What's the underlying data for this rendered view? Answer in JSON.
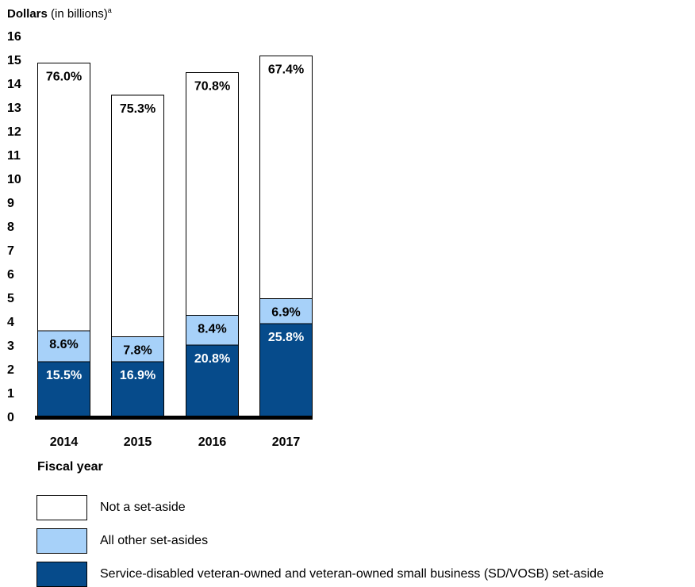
{
  "y_axis_label": {
    "bold": "Dollars",
    "rest": " (in billions)",
    "note": "a"
  },
  "x_axis_label": "Fiscal year",
  "colors": {
    "not_set_aside": "#ffffff",
    "other_set_asides": "#a7d1f9",
    "sdvosb_set_aside": "#064b8b",
    "axis": "#000000"
  },
  "chart_data": {
    "type": "bar",
    "stacked": true,
    "categories": [
      "2014",
      "2015",
      "2016",
      "2017"
    ],
    "ylim": [
      0,
      16
    ],
    "yticks": [
      0,
      1,
      2,
      3,
      4,
      5,
      6,
      7,
      8,
      9,
      10,
      11,
      12,
      13,
      14,
      15,
      16
    ],
    "xlabel": "Fiscal year",
    "ylabel": "Dollars (in billions)",
    "grid": false,
    "legend_position": "bottom",
    "series": [
      {
        "name": "Service-disabled veteran-owned and veteran-owned small business (SD/VOSB) set-aside",
        "values": [
          2.3,
          2.3,
          3.0,
          3.9
        ],
        "labels": [
          "15.5%",
          "16.9%",
          "20.8%",
          "25.8%"
        ],
        "color": "#064b8b"
      },
      {
        "name": "All other set-asides",
        "values": [
          1.3,
          1.05,
          1.25,
          1.05
        ],
        "labels": [
          "8.6%",
          "7.8%",
          "8.4%",
          "6.9%"
        ],
        "color": "#a7d1f9"
      },
      {
        "name": "Not a set-aside",
        "values": [
          11.25,
          10.15,
          10.2,
          10.2
        ],
        "labels": [
          "76.0%",
          "75.3%",
          "70.8%",
          "67.4%"
        ],
        "color": "#ffffff"
      }
    ]
  },
  "legend": [
    {
      "label": "Not a set-aside",
      "color": "#ffffff"
    },
    {
      "label": "All other set-asides",
      "color": "#a7d1f9"
    },
    {
      "label": "Service-disabled veteran-owned and veteran-owned small business (SD/VOSB) set-aside",
      "color": "#064b8b"
    }
  ]
}
